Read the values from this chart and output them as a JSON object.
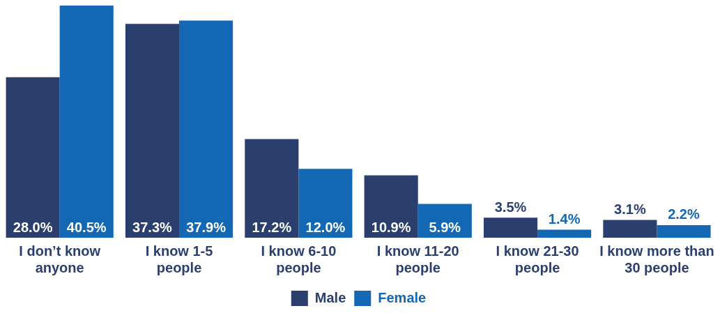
{
  "chart_data": {
    "type": "bar",
    "categories": [
      "I don’t know\nanyone",
      "I know 1-5\npeople",
      "I know 6-10\npeople",
      "I know 11-20\npeople",
      "I know 21-30\npeople",
      "I know more than\n30 people"
    ],
    "series": [
      {
        "name": "Male",
        "color": "#2b3f6e",
        "values": [
          28.0,
          37.3,
          17.2,
          10.9,
          3.5,
          3.1
        ],
        "value_labels": [
          "28.0%",
          "37.3%",
          "17.2%",
          "10.9%",
          "3.5%",
          "3.1%"
        ]
      },
      {
        "name": "Female",
        "color": "#1367b3",
        "values": [
          40.5,
          37.9,
          12.0,
          5.9,
          1.4,
          2.2
        ],
        "value_labels": [
          "40.5%",
          "37.9%",
          "12.0%",
          "5.9%",
          "1.4%",
          "2.2%"
        ]
      }
    ],
    "legend": "bottom",
    "grid": false
  }
}
